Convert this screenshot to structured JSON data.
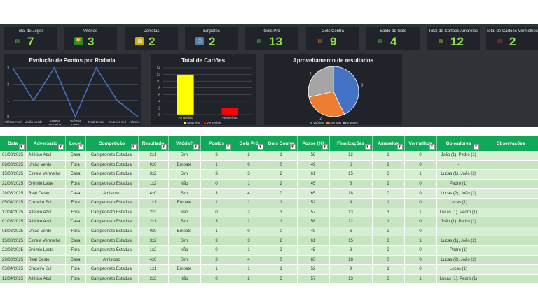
{
  "kpis": [
    {
      "label": "Total de Jogos",
      "value": "7",
      "icon": "document-icon",
      "color": "#5fbf4a"
    },
    {
      "label": "Vitórias",
      "value": "3",
      "icon": "trophy-icon",
      "color": "#1e8f3c"
    },
    {
      "label": "Derrotas",
      "value": "2",
      "icon": "loss-icon",
      "color": "#c9b400"
    },
    {
      "label": "Empates",
      "value": "2",
      "icon": "handshake-icon",
      "color": "#5a7fa5"
    },
    {
      "label": "Gols Pró",
      "value": "13",
      "icon": "document-icon",
      "color": "#5fbf4a"
    },
    {
      "label": "Gols Contra",
      "value": "9",
      "icon": "document-icon",
      "color": "#e0742a"
    },
    {
      "label": "Saldo de Gols",
      "value": "4",
      "icon": "document-icon",
      "color": "#5fbf4a"
    },
    {
      "label": "Total de Cartões Amarelos",
      "value": "12",
      "icon": "document-icon",
      "color": "#e6d22a"
    },
    {
      "label": "Total de Cartões Vermelhos",
      "value": "2",
      "icon": "document-icon",
      "color": "#d82b2b"
    }
  ],
  "charts": {
    "line": {
      "title": "Evolução de Pontos por Rodada"
    },
    "bar": {
      "title": "Total de Cartões"
    },
    "pie": {
      "title": "Aproveitamento de resultados"
    }
  },
  "chart_data": [
    {
      "type": "line",
      "title": "Evolução de Pontos por Rodada",
      "categories": [
        "Atlético Azul",
        "União Verde",
        "Estrela Vermelha",
        "Grêmio Leste",
        "Real Oeste",
        "Cruzeiro Sul",
        "Atlético Azul"
      ],
      "values": [
        3,
        1,
        3,
        0,
        3,
        1,
        0
      ],
      "ylim": [
        0,
        3
      ],
      "yticks": [
        0,
        1,
        2,
        3
      ],
      "color": "#4472c4"
    },
    {
      "type": "bar",
      "title": "Total de Cartões",
      "categories": [
        "Amarelos",
        "Vermelhos"
      ],
      "values": [
        12,
        2
      ],
      "ylim": [
        0,
        14
      ],
      "yticks": [
        0,
        2,
        4,
        6,
        8,
        10,
        12,
        14
      ],
      "colors": [
        "#ffff00",
        "#ff0000"
      ],
      "legend": [
        "Amarelos",
        "Vermelhos"
      ]
    },
    {
      "type": "pie",
      "title": "Aproveitamento de resultados",
      "categories": [
        "Vitórias",
        "Derrotas",
        "Empates"
      ],
      "values": [
        3,
        2,
        2
      ],
      "colors": [
        "#4472c4",
        "#ed7d31",
        "#a5a5a5"
      ],
      "legend": [
        "Vitórias",
        "Derrotas",
        "Empates"
      ]
    }
  ],
  "table": {
    "headers": [
      "Data",
      "Adversário",
      "Local",
      "Competição",
      "Resultado",
      "Vitória?",
      "Pontos",
      "Gols Pró",
      "Gols Contra",
      "Posse (%)",
      "Finalizações",
      "Amarelos",
      "Vermelhos",
      "Goleadores",
      "Observações"
    ],
    "rows": [
      [
        "01/03/2025",
        "Atlético Azul",
        "Casa",
        "Campeonato Estadual",
        "2x1",
        "Sim",
        "3",
        "2",
        "1",
        "58",
        "12",
        "1",
        "0",
        "João (1), Pedro (1)",
        ""
      ],
      [
        "08/03/2025",
        "União Verde",
        "Fora",
        "Campeonato Estadual",
        "0x0",
        "Empate",
        "1",
        "0",
        "0",
        "49",
        "6",
        "2",
        "0",
        "-",
        ""
      ],
      [
        "15/03/2025",
        "Estrela Vermelha",
        "Casa",
        "Campeonato Estadual",
        "3x2",
        "Sim",
        "3",
        "3",
        "2",
        "61",
        "15",
        "3",
        "1",
        "Lucas (1), João (2)",
        ""
      ],
      [
        "22/03/2025",
        "Grêmio Leste",
        "Fora",
        "Campeonato Estadual",
        "1x2",
        "Não",
        "0",
        "1",
        "2",
        "45",
        "8",
        "2",
        "0",
        "Pedro (1)",
        ""
      ],
      [
        "29/03/2025",
        "Real Oeste",
        "Casa",
        "Amistoso",
        "4x0",
        "Sim",
        "3",
        "4",
        "0",
        "65",
        "18",
        "0",
        "0",
        "Lucas (2), João (2)",
        ""
      ],
      [
        "05/04/2025",
        "Cruzeiro Sul",
        "Fora",
        "Campeonato Estadual",
        "1x1",
        "Empate",
        "1",
        "1",
        "1",
        "52",
        "9",
        "1",
        "0",
        "Lucas (1)",
        ""
      ],
      [
        "12/04/2025",
        "Atlético Azul",
        "Fora",
        "Campeonato Estadual",
        "2x3",
        "Não",
        "0",
        "2",
        "3",
        "57",
        "13",
        "3",
        "1",
        "Lucas (1), Pedro (1)",
        ""
      ],
      [
        "01/03/2025",
        "Atlético Azul",
        "Casa",
        "Campeonato Estadual",
        "2x1",
        "Sim",
        "3",
        "2",
        "1",
        "58",
        "12",
        "1",
        "0",
        "João (1), Pedro (1)",
        ""
      ],
      [
        "08/03/2025",
        "União Verde",
        "Fora",
        "Campeonato Estadual",
        "0x0",
        "Empate",
        "1",
        "0",
        "0",
        "49",
        "6",
        "2",
        "0",
        "-",
        ""
      ],
      [
        "15/03/2025",
        "Estrela Vermelha",
        "Casa",
        "Campeonato Estadual",
        "3x2",
        "Sim",
        "3",
        "3",
        "2",
        "61",
        "15",
        "3",
        "1",
        "Lucas (1), João (2)",
        ""
      ],
      [
        "22/03/2025",
        "Grêmio Leste",
        "Fora",
        "Campeonato Estadual",
        "1x2",
        "Não",
        "0",
        "1",
        "2",
        "45",
        "8",
        "2",
        "0",
        "Pedro (1)",
        ""
      ],
      [
        "29/03/2025",
        "Real Oeste",
        "Casa",
        "Amistoso",
        "4x0",
        "Sim",
        "3",
        "4",
        "0",
        "65",
        "18",
        "0",
        "0",
        "Lucas (2), João (2)",
        ""
      ],
      [
        "05/04/2025",
        "Cruzeiro Sul",
        "Fora",
        "Campeonato Estadual",
        "1x1",
        "Empate",
        "1",
        "1",
        "1",
        "52",
        "9",
        "1",
        "0",
        "Lucas (1)",
        ""
      ],
      [
        "12/04/2025",
        "Atlético Azul",
        "Fora",
        "Campeonato Estadual",
        "2x3",
        "Não",
        "0",
        "2",
        "3",
        "57",
        "13",
        "3",
        "1",
        "Lucas (1), Pedro (1)",
        ""
      ]
    ]
  }
}
